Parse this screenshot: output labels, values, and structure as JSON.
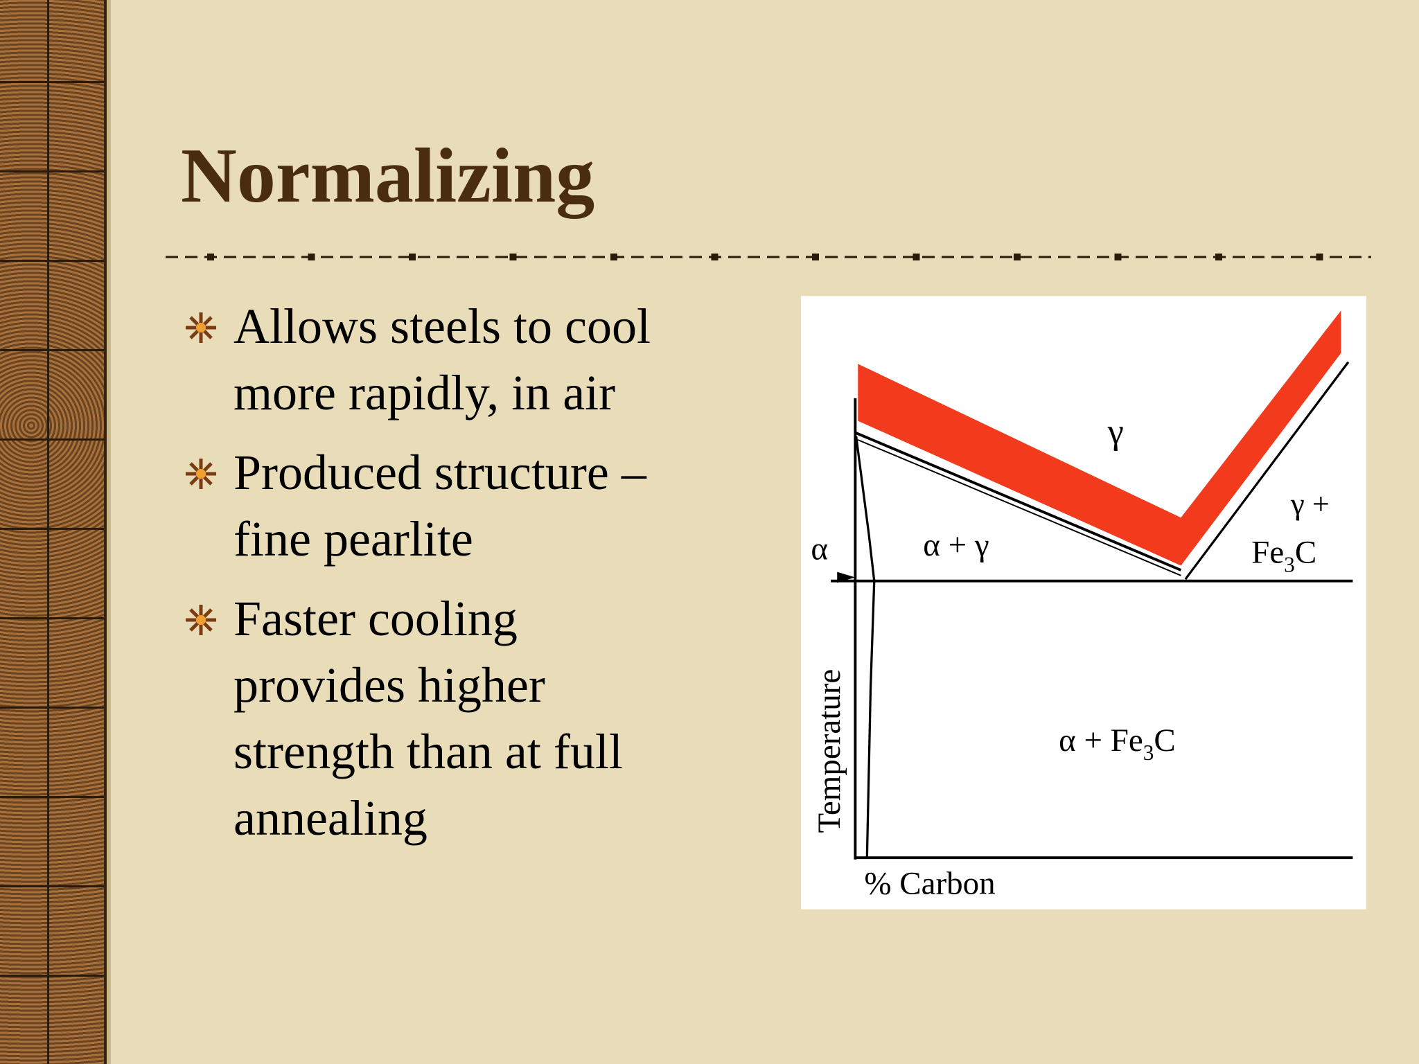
{
  "slide": {
    "title": "Normalizing",
    "bullets": [
      [
        "Allows steels to cool",
        "more rapidly, in air"
      ],
      [
        "Produced structure –",
        "fine pearlite"
      ],
      [
        "Faster cooling",
        "provides higher",
        "strength than at full",
        "annealing"
      ]
    ],
    "diagram": {
      "gamma": "γ",
      "gamma_plus": "γ +",
      "fe3c": {
        "main": "Fe",
        "sub": "3",
        "tail": "C"
      },
      "alpha": "α",
      "alpha_gamma": "α + γ",
      "alpha_fe3c": {
        "main": "α + Fe",
        "sub": "3",
        "tail": "C"
      },
      "y_label": "Temperature",
      "x_label": "% Carbon"
    }
  }
}
